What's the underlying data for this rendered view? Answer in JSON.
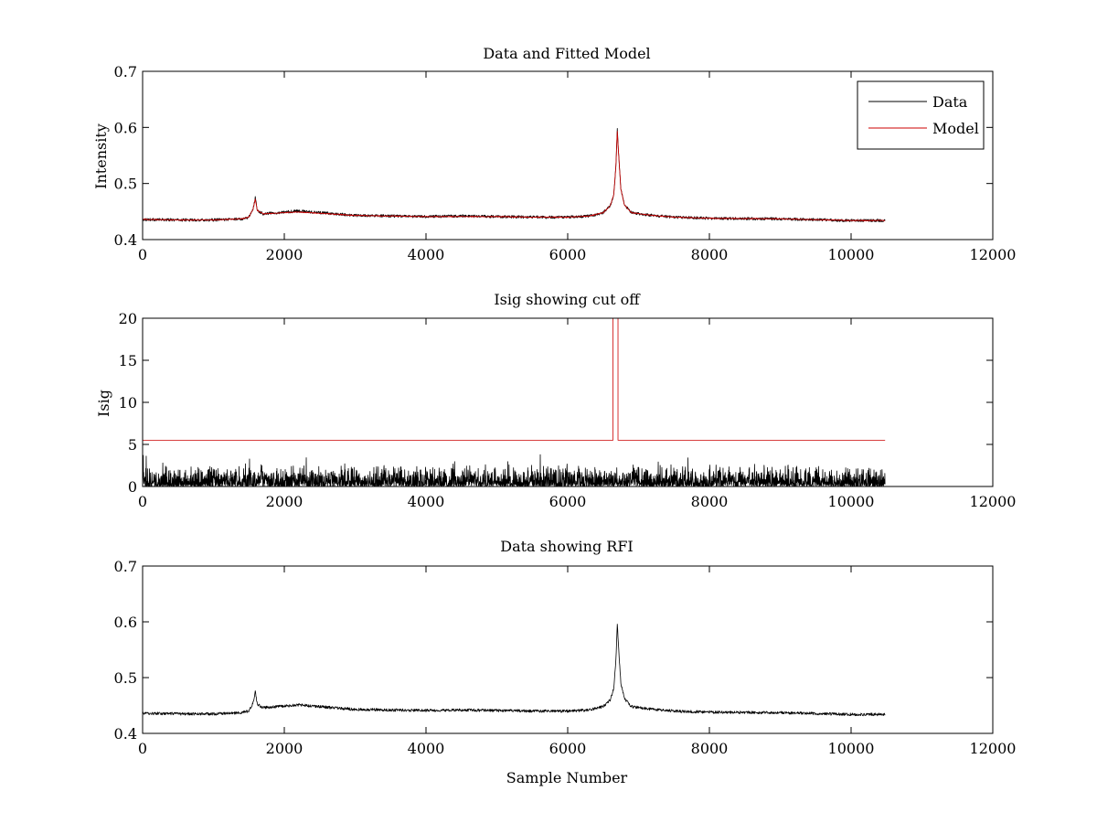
{
  "chart_data": [
    {
      "type": "line",
      "title": "Data and Fitted Model",
      "xlabel": "",
      "ylabel": "Intensity",
      "xlim": [
        0,
        12000
      ],
      "ylim": [
        0.4,
        0.7
      ],
      "xticks": [
        0,
        2000,
        4000,
        6000,
        8000,
        10000,
        12000
      ],
      "yticks": [
        0.4,
        0.5,
        0.6,
        0.7
      ],
      "xtick_labels": [
        "0",
        "2000",
        "4000",
        "6000",
        "8000",
        "10000",
        "12000"
      ],
      "ytick_labels": [
        "0.4",
        "0.5",
        "0.6",
        "0.7"
      ],
      "grid": false,
      "legend": "top-right",
      "series": [
        {
          "name": "Data",
          "color": "#000000",
          "style": "noisy",
          "noise": 0.0025,
          "x": [
            0,
            500,
            1000,
            1400,
            1500,
            1560,
            1590,
            1620,
            1700,
            2000,
            2200,
            2500,
            3000,
            3500,
            4000,
            4500,
            5000,
            5500,
            6000,
            6300,
            6500,
            6600,
            6650,
            6680,
            6700,
            6720,
            6750,
            6800,
            6900,
            7200,
            7500,
            8000,
            9000,
            10000,
            10480
          ],
          "y": [
            0.436,
            0.435,
            0.435,
            0.437,
            0.44,
            0.455,
            0.475,
            0.452,
            0.446,
            0.449,
            0.451,
            0.448,
            0.443,
            0.442,
            0.441,
            0.442,
            0.441,
            0.44,
            0.44,
            0.442,
            0.448,
            0.46,
            0.48,
            0.53,
            0.598,
            0.55,
            0.49,
            0.462,
            0.448,
            0.443,
            0.44,
            0.438,
            0.437,
            0.434,
            0.434
          ]
        },
        {
          "name": "Model",
          "color": "#cc0000",
          "style": "noisy",
          "noise": 0.0008,
          "x": [
            0,
            500,
            1000,
            1400,
            1500,
            1560,
            1590,
            1620,
            1700,
            2000,
            2200,
            2500,
            3000,
            3500,
            4000,
            4500,
            5000,
            5500,
            6000,
            6300,
            6500,
            6600,
            6650,
            6680,
            6700,
            6720,
            6750,
            6800,
            6900,
            7200,
            7500,
            8000,
            9000,
            10000,
            10480
          ],
          "y": [
            0.436,
            0.435,
            0.435,
            0.437,
            0.44,
            0.455,
            0.472,
            0.452,
            0.446,
            0.448,
            0.449,
            0.447,
            0.443,
            0.442,
            0.441,
            0.441,
            0.441,
            0.44,
            0.44,
            0.442,
            0.448,
            0.46,
            0.48,
            0.53,
            0.593,
            0.55,
            0.49,
            0.462,
            0.448,
            0.443,
            0.44,
            0.438,
            0.437,
            0.434,
            0.434
          ]
        }
      ]
    },
    {
      "type": "line",
      "title": "Isig showing cut off",
      "xlabel": "",
      "ylabel": "Isig",
      "xlim": [
        0,
        12000
      ],
      "ylim": [
        0,
        20
      ],
      "xticks": [
        0,
        2000,
        4000,
        6000,
        8000,
        10000,
        12000
      ],
      "yticks": [
        0,
        5,
        10,
        15,
        20
      ],
      "xtick_labels": [
        "0",
        "2000",
        "4000",
        "6000",
        "8000",
        "10000",
        "12000"
      ],
      "ytick_labels": [
        "0",
        "5",
        "10",
        "15",
        "20"
      ],
      "grid": false,
      "legend": "none",
      "series": [
        {
          "color": "#000000",
          "style": "spiky",
          "x": [
            0,
            10480
          ],
          "typical_max": 2.0,
          "peak_max": 3.8
        },
        {
          "color": "#cc0000",
          "style": "step",
          "x": [
            0,
            6640,
            6640,
            6710,
            6710,
            10480
          ],
          "y": [
            5.5,
            5.5,
            20,
            20,
            5.5,
            5.5
          ]
        }
      ]
    },
    {
      "type": "line",
      "title": "Data showing RFI",
      "xlabel": "Sample Number",
      "ylabel": "",
      "xlim": [
        0,
        12000
      ],
      "ylim": [
        0.4,
        0.7
      ],
      "xticks": [
        0,
        2000,
        4000,
        6000,
        8000,
        10000,
        12000
      ],
      "yticks": [
        0.4,
        0.5,
        0.6,
        0.7
      ],
      "xtick_labels": [
        "0",
        "2000",
        "4000",
        "6000",
        "8000",
        "10000",
        "12000"
      ],
      "ytick_labels": [
        "0.4",
        "0.5",
        "0.6",
        "0.7"
      ],
      "grid": false,
      "legend": "none",
      "series": [
        {
          "color": "#000000",
          "style": "noisy",
          "noise": 0.0025,
          "x": [
            0,
            500,
            1000,
            1400,
            1500,
            1560,
            1590,
            1620,
            1700,
            2000,
            2200,
            2500,
            3000,
            3500,
            4000,
            4500,
            5000,
            5500,
            6000,
            6300,
            6500,
            6600,
            6650,
            6680,
            6700,
            6720,
            6750,
            6800,
            6900,
            7200,
            7500,
            8000,
            9000,
            10000,
            10480
          ],
          "y": [
            0.436,
            0.435,
            0.435,
            0.437,
            0.44,
            0.455,
            0.475,
            0.452,
            0.446,
            0.449,
            0.451,
            0.448,
            0.443,
            0.442,
            0.441,
            0.442,
            0.441,
            0.44,
            0.44,
            0.442,
            0.448,
            0.46,
            0.48,
            0.53,
            0.598,
            0.55,
            0.49,
            0.462,
            0.448,
            0.443,
            0.44,
            0.438,
            0.437,
            0.434,
            0.434
          ]
        }
      ]
    }
  ]
}
